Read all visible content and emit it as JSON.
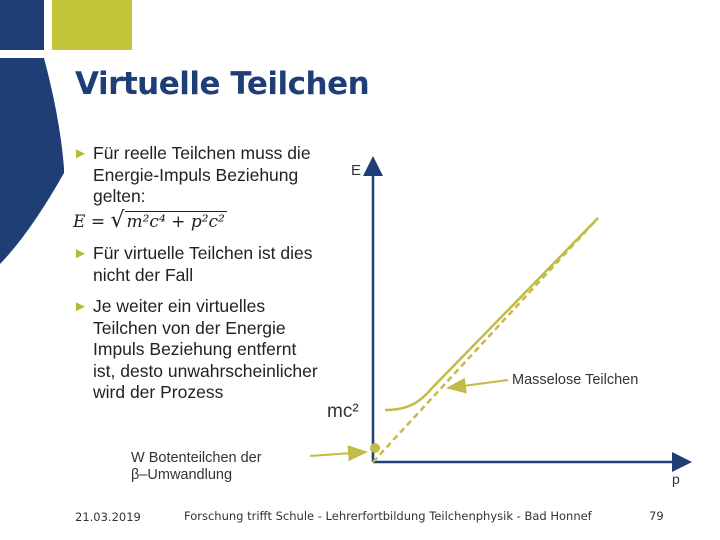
{
  "slide": {
    "title": "Virtuelle Teilchen",
    "bullets": [
      {
        "text": "Für reelle Teilchen muss die Energie-Impuls Beziehung gelten:"
      },
      {
        "text": "Für virtuelle Teilchen ist dies nicht der Fall"
      },
      {
        "text": "Je weiter ein virtuelles Teilchen von der Energie Impuls Beziehung entfernt ist, desto unwahrscheinlicher wird der Prozess"
      }
    ],
    "formula": {
      "lhs": "E = ",
      "radicand": "m²c⁴ + p²c²"
    }
  },
  "diagram": {
    "y_axis_label": "E",
    "x_axis_label": "p",
    "mc2_label": "mc²",
    "massless_label": "Masselose Teilchen",
    "w_label_line1": "W Botenteilchen der",
    "w_label_line2": "β–Umwandlung"
  },
  "footer": {
    "date": "21.03.2019",
    "text": "Forschung trifft Schule - Lehrerfortbildung Teilchenphysik - Bad Honnef",
    "page": "79"
  },
  "colors": {
    "navy": "#1f3e76",
    "olive": "#c4c43a",
    "curve": "#c2bb45"
  }
}
